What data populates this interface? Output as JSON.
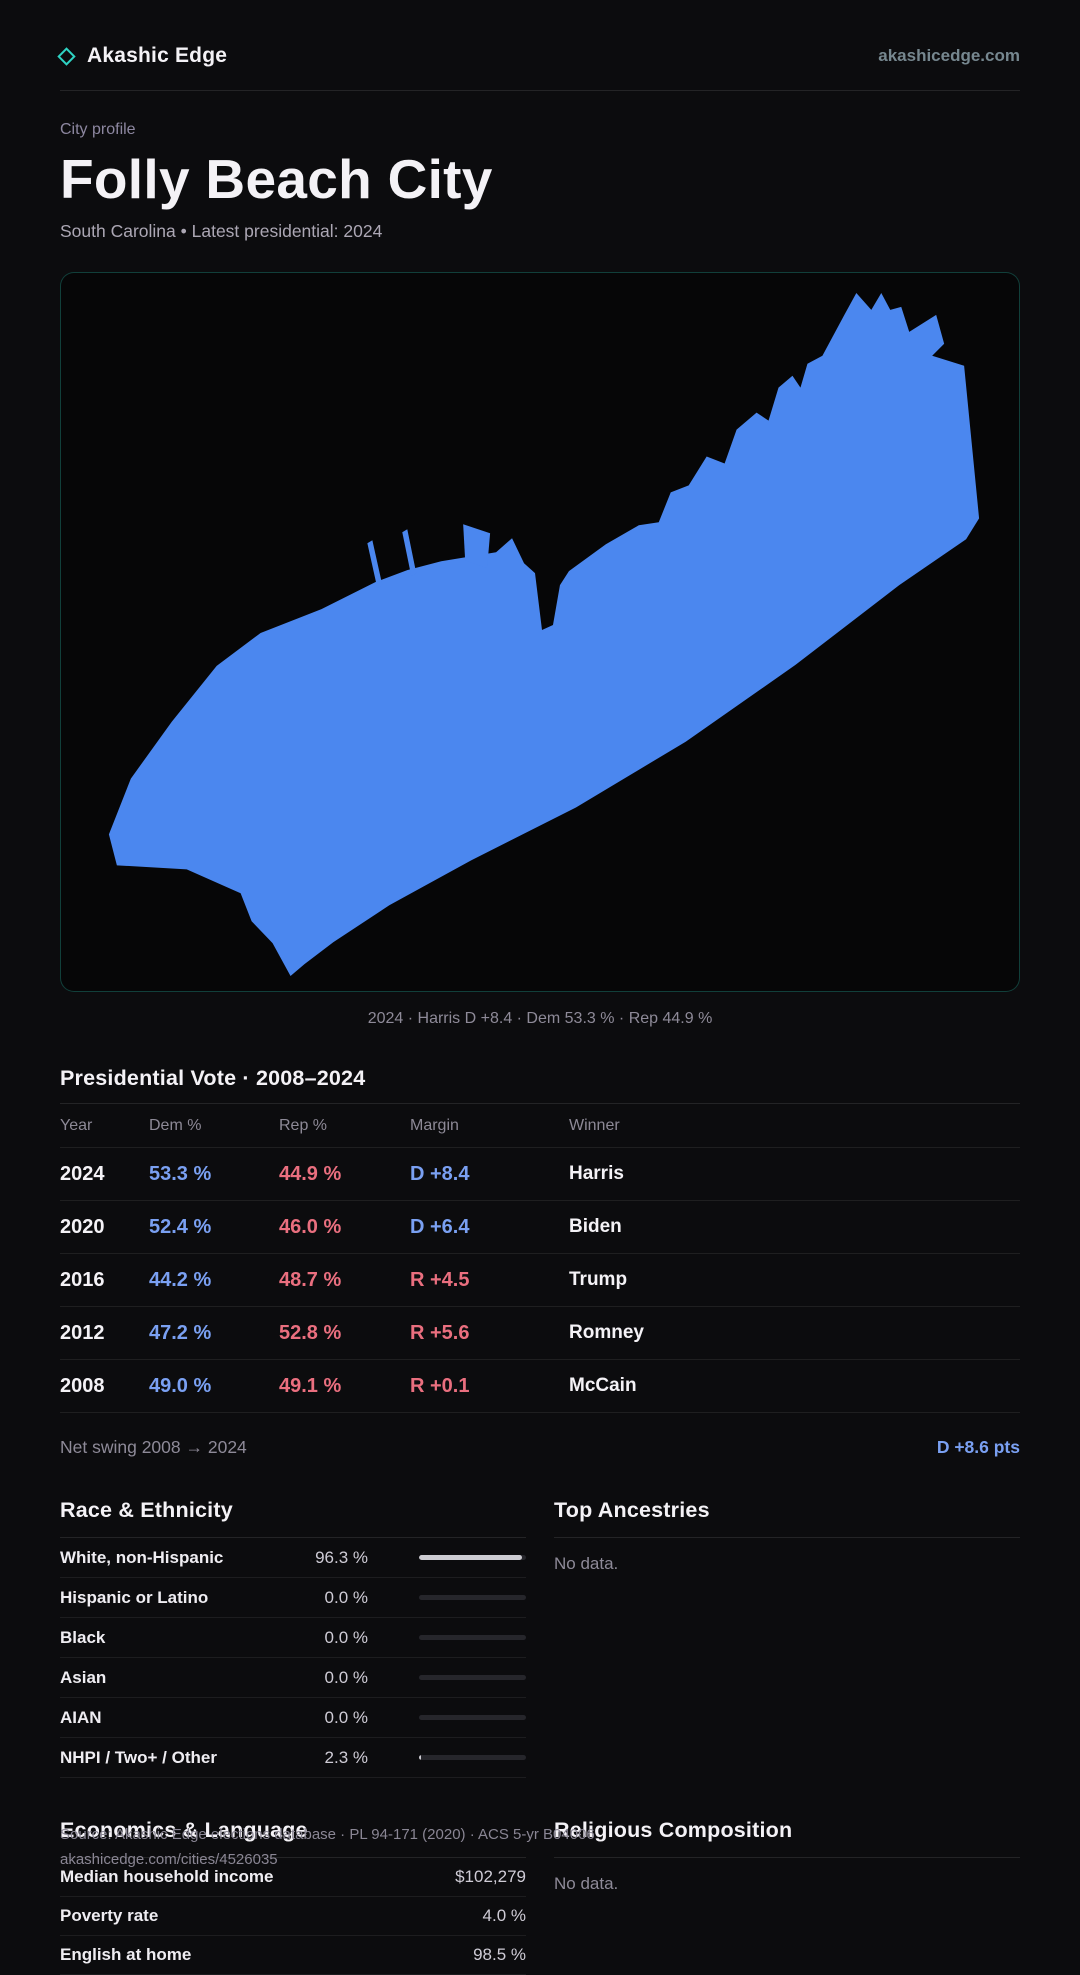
{
  "brand": {
    "name": "Akashic Edge",
    "domain": "akashicedge.com",
    "accent": "#2ed3c3"
  },
  "header": {
    "eyebrow": "City profile",
    "title": "Folly Beach City",
    "subtitle": "South Carolina • Latest presidential: 2024"
  },
  "map": {
    "fill": "#4b87ef",
    "caption": "2024 · Harris D +8.4 · Dem 53.3 % · Rep 44.9 %"
  },
  "vote_table": {
    "title": "Presidential Vote · 2008–2024",
    "columns": [
      "Year",
      "Dem %",
      "Rep %",
      "Margin",
      "Winner"
    ],
    "rows": [
      {
        "year": "2024",
        "dem": "53.3 %",
        "rep": "44.9 %",
        "margin": "D +8.4",
        "winner": "Harris",
        "party": "D"
      },
      {
        "year": "2020",
        "dem": "52.4 %",
        "rep": "46.0 %",
        "margin": "D +6.4",
        "winner": "Biden",
        "party": "D"
      },
      {
        "year": "2016",
        "dem": "44.2 %",
        "rep": "48.7 %",
        "margin": "R +4.5",
        "winner": "Trump",
        "party": "R"
      },
      {
        "year": "2012",
        "dem": "47.2 %",
        "rep": "52.8 %",
        "margin": "R +5.6",
        "winner": "Romney",
        "party": "R"
      },
      {
        "year": "2008",
        "dem": "49.0 %",
        "rep": "49.1 %",
        "margin": "R +0.1",
        "winner": "McCain",
        "party": "R"
      }
    ],
    "net_swing_label": "Net swing 2008 → 2024",
    "net_swing_value": "D +8.6 pts"
  },
  "race": {
    "title": "Race & Ethnicity",
    "rows": [
      {
        "label": "White, non-Hispanic",
        "value": "96.3 %",
        "pct": 96.3
      },
      {
        "label": "Hispanic or Latino",
        "value": "0.0 %",
        "pct": 0
      },
      {
        "label": "Black",
        "value": "0.0 %",
        "pct": 0
      },
      {
        "label": "Asian",
        "value": "0.0 %",
        "pct": 0
      },
      {
        "label": "AIAN",
        "value": "0.0 %",
        "pct": 0
      },
      {
        "label": "NHPI / Two+ / Other",
        "value": "2.3 %",
        "pct": 2.3
      }
    ]
  },
  "ancestries": {
    "title": "Top Ancestries",
    "empty": "No data."
  },
  "economics": {
    "title": "Economics & Language",
    "rows": [
      {
        "label": "Median household income",
        "value": "$102,279"
      },
      {
        "label": "Poverty rate",
        "value": "4.0 %"
      },
      {
        "label": "English at home",
        "value": "98.5 %"
      }
    ]
  },
  "religion": {
    "title": "Religious Composition",
    "empty": "No data."
  },
  "footer": {
    "line1": "Source: Akashic Edge elections database · PL 94-171 (2020) · ACS 5-yr B04006",
    "line2": "akashicedge.com/cities/4526035"
  }
}
